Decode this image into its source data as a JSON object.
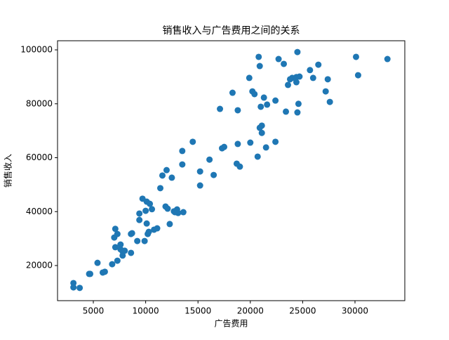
{
  "chart_data": {
    "type": "scatter",
    "title": "销售收入与广告费用之间的关系",
    "xlabel": "广告费用",
    "ylabel": "销售收入",
    "color": "#1f77b4",
    "xlim": [
      1580,
      34760
    ],
    "ylim": [
      6970,
      103390
    ],
    "xticks": [
      5000,
      10000,
      15000,
      20000,
      25000,
      30000
    ],
    "yticks": [
      20000,
      40000,
      60000,
      80000,
      100000
    ],
    "x": [
      3100,
      3100,
      3700,
      4600,
      4700,
      5400,
      5900,
      6100,
      6800,
      7300,
      7000,
      7100,
      7300,
      7100,
      7600,
      7600,
      7800,
      7800,
      8000,
      8600,
      8600,
      8700,
      9200,
      9400,
      9400,
      9700,
      9900,
      10000,
      10100,
      10100,
      10200,
      10300,
      10400,
      10600,
      10800,
      11100,
      11400,
      11600,
      11900,
      12000,
      12100,
      12300,
      12500,
      12700,
      12800,
      13000,
      13100,
      13500,
      13500,
      13600,
      14500,
      15200,
      15200,
      16100,
      16500,
      17100,
      17300,
      17500,
      18300,
      18700,
      18800,
      18800,
      19000,
      19900,
      20000,
      20200,
      20400,
      20700,
      20800,
      20900,
      20900,
      21000,
      21100,
      21100,
      21300,
      21500,
      21600,
      22400,
      22400,
      22700,
      23200,
      23400,
      23600,
      23800,
      24000,
      24400,
      24400,
      24500,
      24500,
      24600,
      24700,
      25700,
      26000,
      26500,
      27200,
      27400,
      27600,
      30100,
      30300,
      33100
    ],
    "y": [
      13500,
      11900,
      11700,
      16900,
      16900,
      21000,
      17400,
      17700,
      20500,
      21800,
      30400,
      33600,
      31700,
      26800,
      26000,
      27800,
      25200,
      23700,
      25500,
      31700,
      24700,
      32000,
      29100,
      36900,
      39300,
      44800,
      29100,
      40300,
      35600,
      43700,
      31700,
      32500,
      42900,
      40900,
      33300,
      33800,
      48700,
      53400,
      41900,
      55400,
      41100,
      35400,
      52600,
      40100,
      39800,
      40800,
      39500,
      57500,
      62500,
      39800,
      65900,
      54900,
      49700,
      59300,
      53600,
      78100,
      63500,
      64000,
      84100,
      57800,
      77600,
      65100,
      56700,
      89600,
      65600,
      84600,
      83600,
      60400,
      97400,
      94000,
      71100,
      78900,
      71900,
      69200,
      82300,
      63800,
      79700,
      65900,
      81200,
      96600,
      94800,
      77100,
      87000,
      89100,
      89600,
      88000,
      89900,
      99200,
      76800,
      80000,
      90100,
      92500,
      89600,
      94500,
      84600,
      89100,
      80700,
      97400,
      90600,
      96600
    ]
  }
}
